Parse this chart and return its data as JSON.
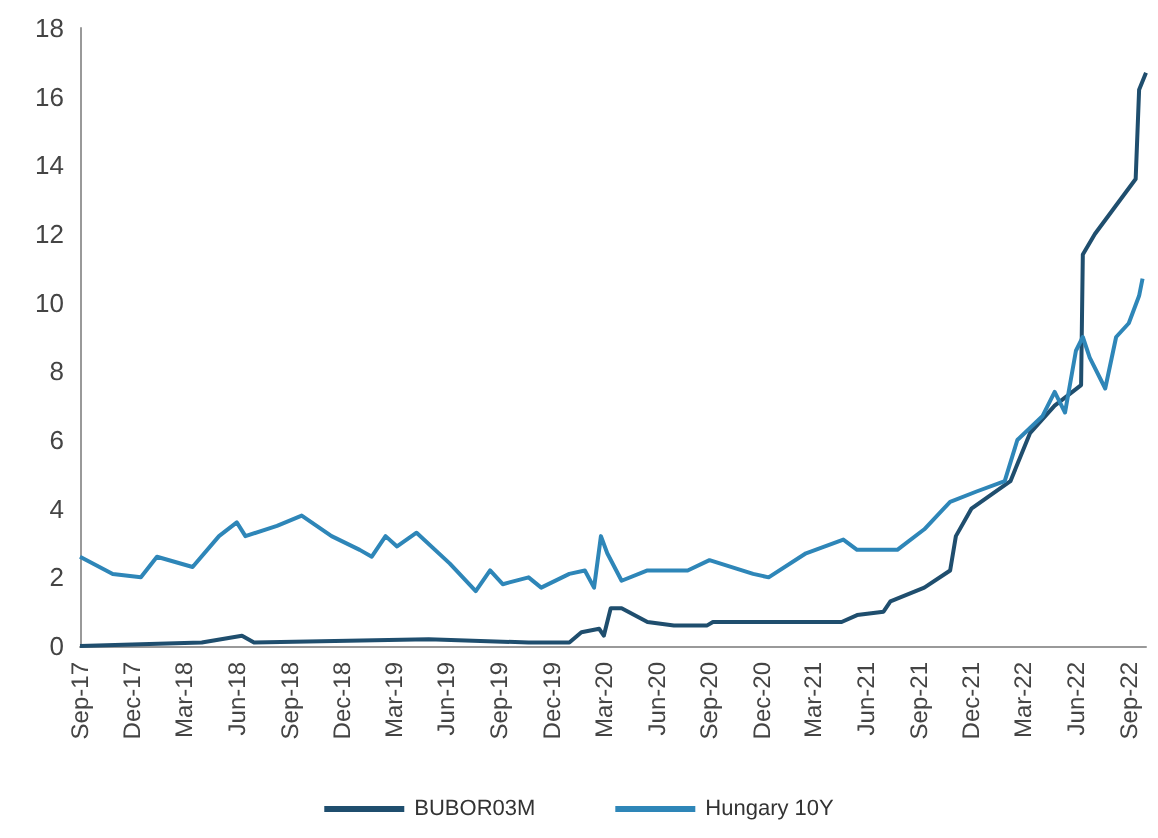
{
  "chart_data": {
    "type": "line",
    "legend": "bottom",
    "grid": false,
    "marker": "none",
    "line_style": "solid",
    "xlim": [
      "2017-09-01",
      "2022-10-01"
    ],
    "ylim": [
      0,
      18
    ],
    "yticks": [
      0,
      2,
      4,
      6,
      8,
      10,
      12,
      14,
      16,
      18
    ],
    "xticks": [
      {
        "value": "2017-09-01",
        "label": "Sep-17"
      },
      {
        "value": "2017-12-01",
        "label": "Dec-17"
      },
      {
        "value": "2018-03-01",
        "label": "Mar-18"
      },
      {
        "value": "2018-06-01",
        "label": "Jun-18"
      },
      {
        "value": "2018-09-01",
        "label": "Sep-18"
      },
      {
        "value": "2018-12-01",
        "label": "Dec-18"
      },
      {
        "value": "2019-03-01",
        "label": "Mar-19"
      },
      {
        "value": "2019-06-01",
        "label": "Jun-19"
      },
      {
        "value": "2019-09-01",
        "label": "Sep-19"
      },
      {
        "value": "2019-12-01",
        "label": "Dec-19"
      },
      {
        "value": "2020-03-01",
        "label": "Mar-20"
      },
      {
        "value": "2020-06-01",
        "label": "Jun-20"
      },
      {
        "value": "2020-09-01",
        "label": "Sep-20"
      },
      {
        "value": "2020-12-01",
        "label": "Dec-20"
      },
      {
        "value": "2021-03-01",
        "label": "Mar-21"
      },
      {
        "value": "2021-06-01",
        "label": "Jun-21"
      },
      {
        "value": "2021-09-01",
        "label": "Sep-21"
      },
      {
        "value": "2021-12-01",
        "label": "Dec-21"
      },
      {
        "value": "2022-03-01",
        "label": "Mar-22"
      },
      {
        "value": "2022-06-01",
        "label": "Jun-22"
      },
      {
        "value": "2022-09-01",
        "label": "Sep-22"
      }
    ],
    "series": [
      {
        "name": "BUBOR03M",
        "color": "#1f4e6e",
        "x": [
          "2017-09-01",
          "2018-04-01",
          "2018-06-10",
          "2018-07-01",
          "2019-05-01",
          "2019-10-22",
          "2020-01-01",
          "2020-01-22",
          "2020-02-22",
          "2020-03-01",
          "2020-03-13",
          "2020-04-01",
          "2020-05-16",
          "2020-07-01",
          "2020-08-28",
          "2020-09-07",
          "2021-04-19",
          "2021-05-16",
          "2021-07-01",
          "2021-07-13",
          "2021-09-10",
          "2021-10-25",
          "2021-11-04",
          "2021-12-01",
          "2022-01-04",
          "2022-02-07",
          "2022-03-13",
          "2022-04-25",
          "2022-06-10",
          "2022-06-13",
          "2022-07-04",
          "2022-08-04",
          "2022-09-13",
          "2022-09-19",
          "2022-10-01"
        ],
        "values": [
          0.0,
          0.1,
          0.3,
          0.1,
          0.2,
          0.1,
          0.1,
          0.4,
          0.5,
          0.3,
          1.1,
          1.1,
          0.7,
          0.6,
          0.6,
          0.7,
          0.7,
          0.9,
          1.0,
          1.3,
          1.7,
          2.2,
          3.2,
          4.0,
          4.4,
          4.8,
          6.2,
          7.0,
          7.6,
          11.4,
          12.0,
          12.7,
          13.6,
          16.2,
          16.7
        ]
      },
      {
        "name": "Hungary 10Y",
        "color": "#2e86b8",
        "x": [
          "2017-09-01",
          "2017-10-28",
          "2017-12-16",
          "2018-01-13",
          "2018-03-16",
          "2018-05-01",
          "2018-06-01",
          "2018-06-16",
          "2018-08-10",
          "2018-09-22",
          "2018-11-13",
          "2019-01-01",
          "2019-01-22",
          "2019-02-15",
          "2019-03-07",
          "2019-04-10",
          "2019-06-07",
          "2019-07-22",
          "2019-08-16",
          "2019-09-07",
          "2019-10-22",
          "2019-11-13",
          "2020-01-01",
          "2020-01-28",
          "2020-02-13",
          "2020-02-25",
          "2020-03-07",
          "2020-04-01",
          "2020-05-16",
          "2020-07-25",
          "2020-09-01",
          "2020-11-16",
          "2020-12-13",
          "2021-02-16",
          "2021-04-22",
          "2021-05-16",
          "2021-07-25",
          "2021-09-10",
          "2021-10-25",
          "2021-12-10",
          "2022-01-28",
          "2022-02-19",
          "2022-04-04",
          "2022-04-25",
          "2022-05-13",
          "2022-06-01",
          "2022-06-13",
          "2022-06-25",
          "2022-07-22",
          "2022-08-10",
          "2022-09-01",
          "2022-09-19",
          "2022-09-25"
        ],
        "values": [
          2.6,
          2.1,
          2.0,
          2.6,
          2.3,
          3.2,
          3.6,
          3.2,
          3.5,
          3.8,
          3.2,
          2.8,
          2.6,
          3.2,
          2.9,
          3.3,
          2.4,
          1.6,
          2.2,
          1.8,
          2.0,
          1.7,
          2.1,
          2.2,
          1.7,
          3.2,
          2.7,
          1.9,
          2.2,
          2.2,
          2.5,
          2.1,
          2.0,
          2.7,
          3.1,
          2.8,
          2.8,
          3.4,
          4.2,
          4.5,
          4.8,
          6.0,
          6.7,
          7.4,
          6.8,
          8.6,
          9.0,
          8.4,
          7.5,
          9.0,
          9.4,
          10.2,
          10.7
        ]
      }
    ]
  }
}
